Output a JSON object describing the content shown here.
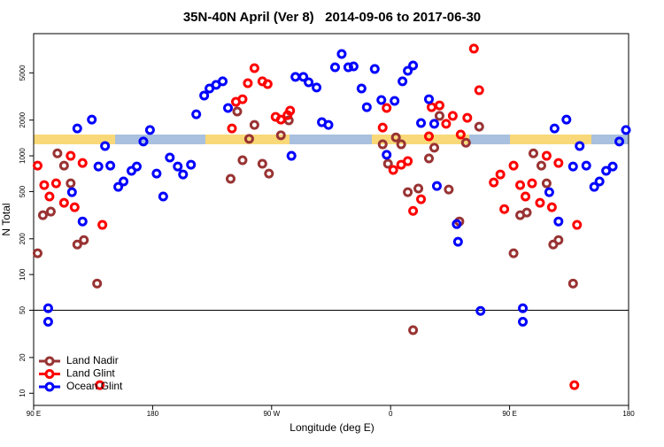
{
  "chart_data": {
    "type": "scatter",
    "title": "35N-40N April (Ver 8)   2014-09-06 to 2017-06-30",
    "x_label": "Longitude (deg E)",
    "y_label": "N Total",
    "xlim": [
      90,
      540
    ],
    "ylim": [
      7.9,
      10700
    ],
    "y_log": true,
    "hline": 50,
    "xticks": [
      {
        "value": 90,
        "label": "90 E"
      },
      180,
      {
        "value": 270,
        "label": "90 W"
      },
      {
        "value": 360,
        "label": "0"
      },
      {
        "value": 450,
        "label": "90 E"
      },
      {
        "value": 540,
        "label": "180"
      }
    ],
    "yticks": [
      10,
      20,
      50,
      100,
      200,
      500,
      1000,
      2000,
      5000
    ],
    "legend": "bottom-left",
    "series": [
      {
        "name": "Land Nadir",
        "color": "#993333",
        "x": [
          93,
          97,
          103,
          108,
          113,
          118,
          123,
          128,
          138,
          239,
          244,
          248,
          253,
          257,
          263,
          268,
          277,
          283,
          354,
          358,
          364,
          368,
          373,
          377,
          381,
          389,
          393,
          397,
          404,
          412,
          417,
          427,
          453,
          458,
          463,
          468,
          474,
          478,
          483,
          487,
          498
        ],
        "values": [
          151,
          316,
          339,
          1050,
          827,
          587,
          179,
          195,
          84,
          640,
          2360,
          918,
          1390,
          1820,
          857,
          709,
          1490,
          1990,
          1250,
          857,
          1430,
          1250,
          494,
          34,
          530,
          950,
          1170,
          2170,
          520,
          280,
          1290,
          1760,
          151,
          316,
          333,
          1050,
          827,
          587,
          179,
          195,
          84
        ]
      },
      {
        "name": "Land Glint",
        "color": "#ff0000",
        "x": [
          93,
          98,
          102,
          107,
          113,
          118,
          121,
          127,
          140,
          142,
          240,
          243,
          248,
          252,
          257,
          263,
          267,
          273,
          277,
          282,
          284,
          354,
          357,
          362,
          368,
          373,
          377,
          383,
          389,
          391,
          397,
          402,
          407,
          413,
          418,
          423,
          427,
          438,
          443,
          446,
          453,
          458,
          462,
          467,
          473,
          478,
          482,
          487,
          499,
          501
        ],
        "values": [
          827,
          567,
          454,
          587,
          402,
          1000,
          369,
          871,
          11.7,
          262,
          1700,
          2850,
          3000,
          4090,
          5480,
          4240,
          4020,
          2130,
          2020,
          2200,
          2400,
          1730,
          2530,
          760,
          842,
          902,
          344,
          431,
          1460,
          2570,
          2660,
          1860,
          2170,
          1510,
          2090,
          8000,
          3570,
          597,
          697,
          356,
          827,
          567,
          454,
          587,
          402,
          1000,
          369,
          871,
          11.7,
          262
        ]
      },
      {
        "name": "Ocean Glint",
        "color": "#0000ff",
        "x": [
          101,
          101,
          119,
          123,
          127,
          134,
          139,
          144,
          148,
          154,
          158,
          164,
          168,
          173,
          178,
          183,
          188,
          193,
          199,
          203,
          209,
          213,
          219,
          223,
          228,
          233,
          237,
          285,
          288,
          294,
          298,
          304,
          308,
          313,
          318,
          323,
          328,
          332,
          338,
          342,
          348,
          353,
          357,
          363,
          369,
          373,
          377,
          383,
          389,
          393,
          395,
          410,
          411,
          428,
          460,
          460,
          480,
          484,
          487,
          493,
          498,
          503,
          508,
          514,
          518,
          523,
          528,
          533,
          538
        ],
        "values": [
          52,
          40,
          494,
          1700,
          280,
          2020,
          813,
          1210,
          827,
          548,
          608,
          747,
          813,
          1320,
          1650,
          709,
          454,
          967,
          813,
          697,
          842,
          2240,
          3220,
          3690,
          3960,
          4240,
          2530,
          1000,
          4620,
          4620,
          4160,
          3760,
          1920,
          1820,
          5570,
          7210,
          5570,
          5670,
          3690,
          2570,
          5390,
          2950,
          1020,
          2900,
          4240,
          5200,
          5770,
          1890,
          3000,
          1860,
          557,
          266,
          189,
          49.4,
          52,
          40,
          494,
          1700,
          280,
          2020,
          813,
          1210,
          827,
          548,
          608,
          747,
          813,
          1320,
          1650
        ]
      }
    ]
  }
}
